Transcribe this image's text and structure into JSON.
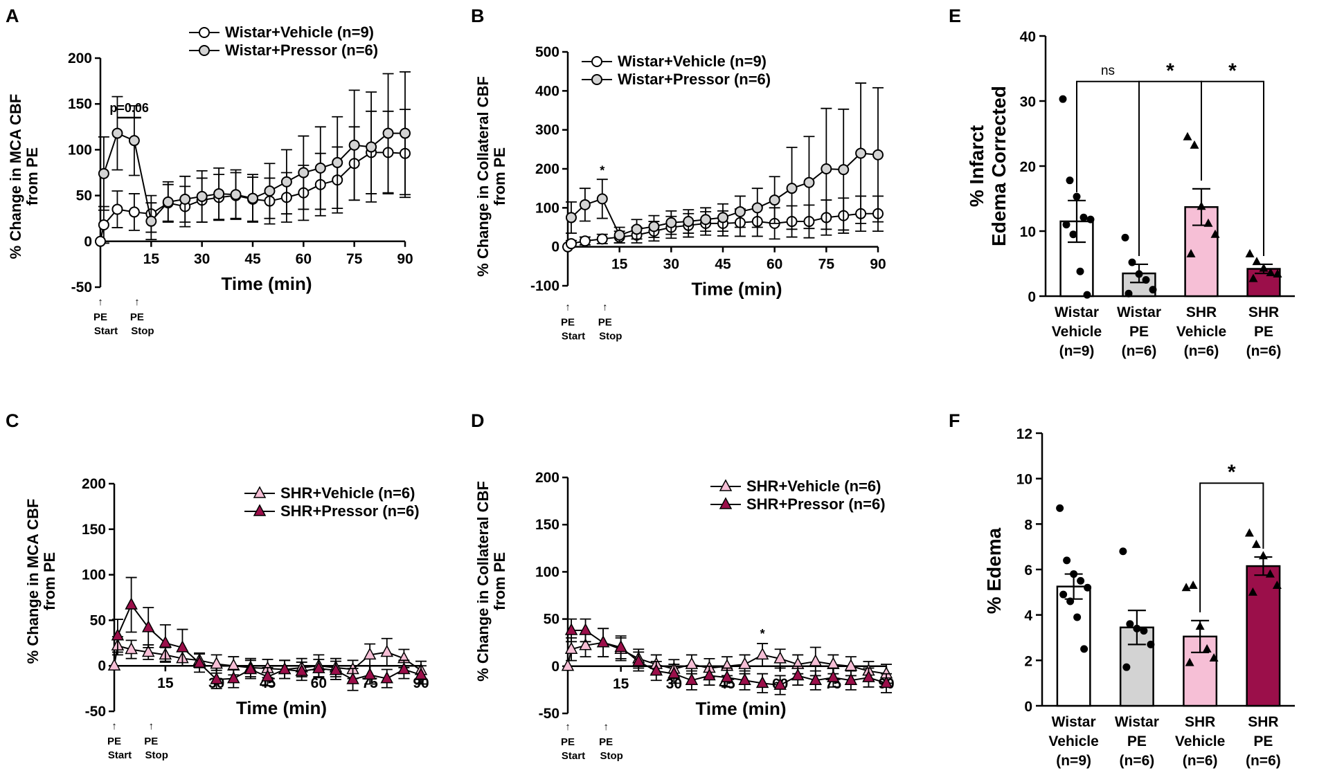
{
  "colors": {
    "white": "#ffffff",
    "gray": "#d3d3d3",
    "pink": "#f6bfd6",
    "maroon": "#9b0f4a",
    "black": "#000000"
  },
  "chart_data": [
    {
      "panel": "A",
      "type": "line",
      "xlabel": "Time (min)",
      "ylabel_lines": [
        "% Change in  MCA CBF",
        "from PE"
      ],
      "xlim": [
        0,
        90
      ],
      "ylim": [
        -50,
        200
      ],
      "xticks": [
        15,
        30,
        45,
        60,
        75,
        90
      ],
      "xtick_labels": [
        "15",
        "30",
        "45",
        "60",
        "75",
        "90"
      ],
      "yticks": [
        -50,
        0,
        50,
        100,
        150,
        200
      ],
      "ytick_labels": [
        "-50",
        "0",
        "50",
        "100",
        "150",
        "200"
      ],
      "annotation": {
        "text": "p=0.06",
        "x1": 5,
        "x2": 10,
        "y": 135
      },
      "pe_markers": [
        {
          "x": 0,
          "lines": [
            "PE",
            "Start"
          ]
        },
        {
          "x": 10,
          "lines": [
            "PE",
            "Stop"
          ]
        }
      ],
      "legend": [
        "Wistar+Vehicle (n=9)",
        "Wistar+Pressor (n=6)"
      ],
      "series": [
        {
          "name": "Wistar+Vehicle (n=9)",
          "marker": "circle",
          "fill": "#ffffff",
          "x": [
            0,
            1,
            5,
            10,
            15,
            20,
            25,
            30,
            35,
            40,
            45,
            50,
            55,
            60,
            65,
            70,
            75,
            80,
            85,
            90
          ],
          "y": [
            0,
            18,
            35,
            32,
            30,
            42,
            38,
            45,
            48,
            50,
            46,
            44,
            48,
            53,
            62,
            67,
            85,
            97,
            97,
            96
          ],
          "err": [
            0,
            20,
            20,
            20,
            20,
            20,
            22,
            24,
            25,
            25,
            24,
            25,
            27,
            30,
            34,
            36,
            40,
            45,
            45,
            48
          ]
        },
        {
          "name": "Wistar+Pressor (n=6)",
          "marker": "circle",
          "fill": "#d3d3d3",
          "x": [
            1,
            5,
            10,
            15,
            20,
            25,
            30,
            35,
            40,
            45,
            50,
            55,
            60,
            65,
            70,
            75,
            80,
            85,
            90
          ],
          "y": [
            74,
            118,
            110,
            22,
            43,
            46,
            49,
            52,
            51,
            47,
            55,
            65,
            75,
            80,
            86,
            105,
            103,
            118,
            118
          ],
          "err": [
            40,
            40,
            38,
            20,
            22,
            25,
            28,
            28,
            27,
            26,
            30,
            35,
            40,
            45,
            50,
            60,
            60,
            65,
            67
          ]
        }
      ]
    },
    {
      "panel": "B",
      "type": "line",
      "xlabel": "Time (min)",
      "ylabel_lines": [
        "% Change in  Collateral CBF",
        "from PE"
      ],
      "xlim": [
        0,
        90
      ],
      "ylim": [
        -100,
        500
      ],
      "xticks": [
        15,
        30,
        45,
        60,
        75,
        90
      ],
      "xtick_labels": [
        "15",
        "30",
        "45",
        "60",
        "75",
        "90"
      ],
      "yticks": [
        -100,
        0,
        100,
        200,
        300,
        400,
        500
      ],
      "ytick_labels": [
        "-100",
        "0",
        "100",
        "200",
        "300",
        "400",
        "500"
      ],
      "annotation": {
        "text": "*",
        "x": 10,
        "y": 185
      },
      "pe_markers": [
        {
          "x": 0,
          "lines": [
            "PE",
            "Start"
          ]
        },
        {
          "x": 10,
          "lines": [
            "PE",
            "Stop"
          ]
        }
      ],
      "legend": [
        "Wistar+Vehicle (n=9)",
        "Wistar+Pressor (n=6)"
      ],
      "series": [
        {
          "name": "Wistar+Vehicle (n=9)",
          "marker": "circle",
          "fill": "#ffffff",
          "x": [
            0,
            1,
            5,
            10,
            15,
            20,
            25,
            30,
            35,
            40,
            45,
            50,
            55,
            60,
            65,
            70,
            75,
            80,
            85,
            90
          ],
          "y": [
            0,
            8,
            15,
            20,
            25,
            30,
            40,
            50,
            55,
            60,
            60,
            62,
            65,
            60,
            65,
            65,
            75,
            80,
            85,
            85
          ],
          "err": [
            0,
            8,
            10,
            12,
            15,
            20,
            25,
            28,
            30,
            30,
            32,
            35,
            38,
            40,
            40,
            42,
            45,
            45,
            45,
            45
          ]
        },
        {
          "name": "Wistar+Pressor (n=6)",
          "marker": "circle",
          "fill": "#d3d3d3",
          "x": [
            1,
            5,
            10,
            15,
            20,
            25,
            30,
            35,
            40,
            45,
            50,
            55,
            60,
            65,
            70,
            75,
            80,
            85,
            90
          ],
          "y": [
            75,
            108,
            123,
            30,
            45,
            52,
            62,
            65,
            70,
            75,
            90,
            100,
            120,
            150,
            165,
            200,
            198,
            240,
            236
          ],
          "err": [
            40,
            42,
            50,
            20,
            25,
            28,
            30,
            30,
            30,
            35,
            40,
            50,
            60,
            105,
            118,
            155,
            155,
            180,
            172
          ]
        }
      ]
    },
    {
      "panel": "C",
      "type": "line",
      "xlabel": "Time (min)",
      "ylabel_lines": [
        "% Change in  MCA CBF",
        "from PE"
      ],
      "xlim": [
        0,
        90
      ],
      "ylim": [
        -50,
        200
      ],
      "xticks": [
        15,
        30,
        45,
        60,
        75,
        90
      ],
      "xtick_labels": [
        "15",
        "30",
        "45",
        "60",
        "75",
        "90"
      ],
      "yticks": [
        -50,
        0,
        50,
        100,
        150,
        200
      ],
      "ytick_labels": [
        "-50",
        "0",
        "50",
        "100",
        "150",
        "200"
      ],
      "pe_markers": [
        {
          "x": 0,
          "lines": [
            "PE",
            "Start"
          ]
        },
        {
          "x": 10,
          "lines": [
            "PE",
            "Stop"
          ]
        }
      ],
      "legend": [
        "SHR+Vehicle (n=6)",
        "SHR+Pressor (n=6)"
      ],
      "series": [
        {
          "name": "SHR+Vehicle (n=6)",
          "marker": "triangle",
          "fill": "#f6bfd6",
          "x": [
            0,
            1,
            5,
            10,
            15,
            20,
            25,
            30,
            35,
            40,
            45,
            50,
            55,
            60,
            65,
            70,
            75,
            80,
            85,
            90
          ],
          "y": [
            0,
            22,
            18,
            15,
            12,
            8,
            6,
            2,
            0,
            -2,
            -3,
            -4,
            -2,
            0,
            -2,
            -4,
            12,
            15,
            8,
            -5
          ],
          "err": [
            0,
            10,
            10,
            8,
            8,
            8,
            8,
            10,
            10,
            10,
            10,
            10,
            10,
            12,
            10,
            10,
            12,
            15,
            10,
            10
          ]
        },
        {
          "name": "SHR+Pressor (n=6)",
          "marker": "triangle",
          "fill": "#9b0f4a",
          "x": [
            1,
            5,
            10,
            15,
            20,
            25,
            30,
            35,
            40,
            45,
            50,
            55,
            60,
            65,
            70,
            75,
            80,
            85,
            90
          ],
          "y": [
            33,
            67,
            42,
            25,
            20,
            3,
            -15,
            -14,
            -4,
            -12,
            -4,
            -6,
            -3,
            -5,
            -15,
            -10,
            -14,
            -4,
            -10
          ],
          "err": [
            18,
            30,
            22,
            20,
            20,
            10,
            10,
            10,
            10,
            10,
            10,
            10,
            10,
            10,
            12,
            10,
            10,
            10,
            10
          ]
        }
      ]
    },
    {
      "panel": "D",
      "type": "line",
      "xlabel": "Time (min)",
      "ylabel_lines": [
        "% Change in  Collateral CBF",
        "from PE"
      ],
      "xlim": [
        0,
        90
      ],
      "ylim": [
        -50,
        200
      ],
      "xticks": [
        15,
        30,
        45,
        60,
        75,
        90
      ],
      "xtick_labels": [
        "15",
        "30",
        "45",
        "60",
        "75",
        "90"
      ],
      "yticks": [
        -50,
        0,
        50,
        100,
        150,
        200
      ],
      "ytick_labels": [
        "-50",
        "0",
        "50",
        "100",
        "150",
        "200"
      ],
      "annotation": {
        "text": "*",
        "x": 55,
        "y": 30
      },
      "pe_markers": [
        {
          "x": 0,
          "lines": [
            "PE",
            "Start"
          ]
        },
        {
          "x": 10,
          "lines": [
            "PE",
            "Stop"
          ]
        }
      ],
      "legend": [
        "SHR+Vehicle (n=6)",
        "SHR+Pressor (n=6)"
      ],
      "series": [
        {
          "name": "SHR+Vehicle (n=6)",
          "marker": "triangle",
          "fill": "#f6bfd6",
          "x": [
            0,
            1,
            5,
            10,
            15,
            20,
            25,
            30,
            35,
            40,
            45,
            50,
            55,
            60,
            65,
            70,
            75,
            80,
            85,
            90
          ],
          "y": [
            0,
            18,
            22,
            25,
            18,
            8,
            2,
            -3,
            2,
            -2,
            0,
            2,
            12,
            8,
            2,
            5,
            2,
            0,
            -5,
            -8
          ],
          "err": [
            0,
            12,
            12,
            15,
            12,
            10,
            10,
            10,
            10,
            10,
            10,
            10,
            12,
            10,
            10,
            15,
            10,
            10,
            10,
            10
          ]
        },
        {
          "name": "SHR+Pressor (n=6)",
          "marker": "triangle",
          "fill": "#9b0f4a",
          "x": [
            1,
            5,
            10,
            15,
            20,
            25,
            30,
            35,
            40,
            45,
            50,
            55,
            60,
            65,
            70,
            75,
            80,
            85,
            90
          ],
          "y": [
            38,
            38,
            25,
            20,
            5,
            -5,
            -8,
            -15,
            -10,
            -12,
            -15,
            -18,
            -20,
            -10,
            -15,
            -12,
            -15,
            -12,
            -18
          ],
          "err": [
            12,
            12,
            15,
            12,
            10,
            10,
            10,
            10,
            10,
            10,
            10,
            10,
            10,
            10,
            10,
            10,
            10,
            10,
            10
          ]
        }
      ]
    },
    {
      "panel": "E",
      "type": "bar",
      "ylabel_lines": [
        "% Infarct",
        "Edema Corrected"
      ],
      "ylim": [
        0,
        40
      ],
      "yticks": [
        0,
        10,
        20,
        30,
        40
      ],
      "ytick_labels": [
        "0",
        "10",
        "20",
        "30",
        "40"
      ],
      "categories": [
        [
          "Wistar",
          "Vehicle",
          "(n=9)"
        ],
        [
          "Wistar",
          "PE",
          "(n=6)"
        ],
        [
          "SHR",
          "Vehicle",
          "(n=6)"
        ],
        [
          "SHR",
          "PE",
          "(n=6)"
        ]
      ],
      "values": [
        11.5,
        3.5,
        13.7,
        4.2
      ],
      "errors": [
        3.2,
        1.4,
        2.8,
        0.7
      ],
      "fills": [
        "#ffffff",
        "#d3d3d3",
        "#f6bfd6",
        "#9b0f4a"
      ],
      "markers": [
        "circle",
        "circle",
        "triangle",
        "triangle"
      ],
      "points": [
        [
          30.3,
          17.8,
          15.3,
          12.1,
          11.8,
          11.0,
          9.5,
          3.8,
          0.2
        ],
        [
          9.0,
          5.2,
          3.4,
          2.5,
          1.0,
          0.4
        ],
        [
          24.5,
          23.2,
          13.8,
          11.2,
          9.5,
          6.5
        ],
        [
          6.5,
          5.3,
          4.3,
          3.6,
          3.4,
          2.7
        ]
      ],
      "comparisons": [
        {
          "from": 0,
          "to": 1,
          "y": 33,
          "label": "ns"
        },
        {
          "from": 1,
          "to": 2,
          "y": 33,
          "label": "*"
        },
        {
          "from": 2,
          "to": 3,
          "y": 33,
          "label": "*"
        }
      ]
    },
    {
      "panel": "F",
      "type": "bar",
      "ylabel_lines": [
        "% Edema"
      ],
      "ylim": [
        0,
        12
      ],
      "yticks": [
        0,
        2,
        4,
        6,
        8,
        10,
        12
      ],
      "ytick_labels": [
        "0",
        "2",
        "4",
        "6",
        "8",
        "10",
        "12"
      ],
      "categories": [
        [
          "Wistar",
          "Vehicle",
          "(n=9)"
        ],
        [
          "Wistar",
          "PE",
          "(n=6)"
        ],
        [
          "SHR",
          "Vehicle",
          "(n=6)"
        ],
        [
          "SHR",
          "PE",
          "(n=6)"
        ]
      ],
      "values": [
        5.25,
        3.45,
        3.05,
        6.15
      ],
      "errors": [
        0.55,
        0.75,
        0.7,
        0.4
      ],
      "fills": [
        "#ffffff",
        "#d3d3d3",
        "#f6bfd6",
        "#9b0f4a"
      ],
      "markers": [
        "circle",
        "circle",
        "triangle",
        "triangle"
      ],
      "points": [
        [
          8.7,
          6.4,
          5.8,
          5.5,
          5.2,
          4.9,
          4.6,
          3.9,
          2.5
        ],
        [
          6.8,
          3.6,
          3.4,
          3.3,
          2.7,
          1.7
        ],
        [
          5.2,
          5.3,
          3.5,
          2.5,
          2.1,
          1.9
        ],
        [
          7.6,
          7.1,
          6.6,
          5.8,
          5.3,
          5.0
        ]
      ],
      "comparisons": [
        {
          "from": 2,
          "to": 3,
          "y": 9.8,
          "label": "*"
        }
      ]
    }
  ]
}
